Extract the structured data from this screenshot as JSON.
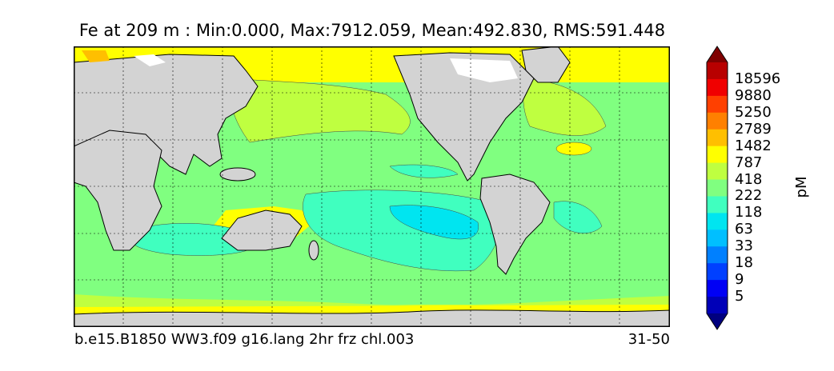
{
  "map": {
    "title": "Fe at 209 m : Min:0.000, Max:7912.059, Mean:492.830, RMS:591.448",
    "caption_left": "b.e15.B1850 WW3.f09 g16.lang 2hr frz chl.003",
    "caption_right": "31-50",
    "land_color": "#d3d3d3",
    "colorbar": {
      "unit": "pM",
      "labels": [
        "5",
        "9",
        "18",
        "33",
        "63",
        "118",
        "222",
        "418",
        "787",
        "1482",
        "2789",
        "5250",
        "9880",
        "18596"
      ],
      "colors": [
        "#00007f",
        "#0000b8",
        "#0000f5",
        "#0040ff",
        "#0080ff",
        "#00bfff",
        "#00e5f0",
        "#40ffbf",
        "#80ff80",
        "#bfff40",
        "#ffff00",
        "#ffbf00",
        "#ff8000",
        "#ff4000",
        "#f00000",
        "#b80000",
        "#7f0000"
      ]
    }
  }
}
